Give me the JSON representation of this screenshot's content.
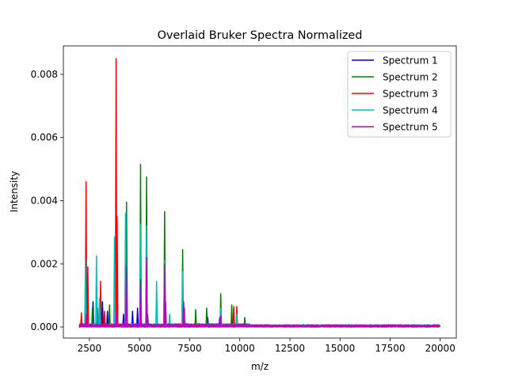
{
  "chart_data": {
    "type": "line",
    "title": "Overlaid Bruker Spectra Normalized",
    "xlabel": "m/z",
    "ylabel": "Intensity",
    "xlim": [
      1200,
      20800
    ],
    "ylim": [
      -0.00035,
      0.0089
    ],
    "xticks": [
      2500,
      5000,
      7500,
      10000,
      12500,
      15000,
      17500,
      20000
    ],
    "xtick_labels": [
      "2500",
      "5000",
      "7500",
      "10000",
      "12500",
      "15000",
      "17500",
      "20000"
    ],
    "yticks": [
      0.0,
      0.002,
      0.004,
      0.006,
      0.008
    ],
    "ytick_labels": [
      "0.000",
      "0.002",
      "0.004",
      "0.006",
      "0.008"
    ],
    "grid": false,
    "legend_position": "top-right",
    "x_range": [
      2000,
      20000
    ],
    "series": [
      {
        "name": "Spectrum 1",
        "color": "#0000cc",
        "peaks": [
          [
            2380,
            0.0006
          ],
          [
            2680,
            0.0008
          ],
          [
            2900,
            0.0006
          ],
          [
            3150,
            0.0008
          ],
          [
            3400,
            0.0005
          ],
          [
            3800,
            0.0004
          ],
          [
            4200,
            0.0004
          ],
          [
            4650,
            0.0005
          ],
          [
            4900,
            0.0006
          ],
          [
            5400,
            0.0004
          ],
          [
            6300,
            0.0004
          ],
          [
            7200,
            0.0003
          ],
          [
            8400,
            0.0003
          ],
          [
            9000,
            0.0003
          ]
        ]
      },
      {
        "name": "Spectrum 2",
        "color": "#008000",
        "peaks": [
          [
            2650,
            0.0006
          ],
          [
            3500,
            0.0007
          ],
          [
            4350,
            0.00395
          ],
          [
            5050,
            0.00515
          ],
          [
            5350,
            0.00475
          ],
          [
            6250,
            0.00365
          ],
          [
            7150,
            0.00245
          ],
          [
            7800,
            0.00055
          ],
          [
            8350,
            0.0006
          ],
          [
            9050,
            0.00105
          ],
          [
            9600,
            0.0007
          ],
          [
            10250,
            0.0003
          ]
        ]
      },
      {
        "name": "Spectrum 3",
        "color": "#ff0000",
        "peaks": [
          [
            2100,
            0.00045
          ],
          [
            2330,
            0.0046
          ],
          [
            2420,
            0.0019
          ],
          [
            3060,
            0.00145
          ],
          [
            3250,
            0.0005
          ],
          [
            3830,
            0.0085
          ],
          [
            3880,
            0.0035
          ],
          [
            4350,
            0.0006
          ],
          [
            5050,
            0.0012
          ],
          [
            6300,
            0.0008
          ],
          [
            9700,
            0.00065
          ],
          [
            9850,
            0.00065
          ]
        ]
      },
      {
        "name": "Spectrum 4",
        "color": "#00bfbf",
        "peaks": [
          [
            2300,
            0.0021
          ],
          [
            2850,
            0.00225
          ],
          [
            3000,
            0.0009
          ],
          [
            3750,
            0.00285
          ],
          [
            4300,
            0.0036
          ],
          [
            5050,
            0.00325
          ],
          [
            5350,
            0.0032
          ],
          [
            5850,
            0.00145
          ],
          [
            6250,
            0.0021
          ],
          [
            6500,
            0.0004
          ],
          [
            7150,
            0.00175
          ],
          [
            7250,
            0.0006
          ],
          [
            9050,
            0.0006
          ],
          [
            9850,
            0.0004
          ]
        ]
      },
      {
        "name": "Spectrum 5",
        "color": "#bf00bf",
        "peaks": [
          [
            2350,
            0.0004
          ],
          [
            3850,
            0.0005
          ],
          [
            4350,
            0.002
          ],
          [
            5050,
            0.0015
          ],
          [
            5350,
            0.0022
          ],
          [
            6250,
            0.002
          ],
          [
            7200,
            0.0008
          ],
          [
            9050,
            0.00035
          ]
        ]
      }
    ]
  }
}
